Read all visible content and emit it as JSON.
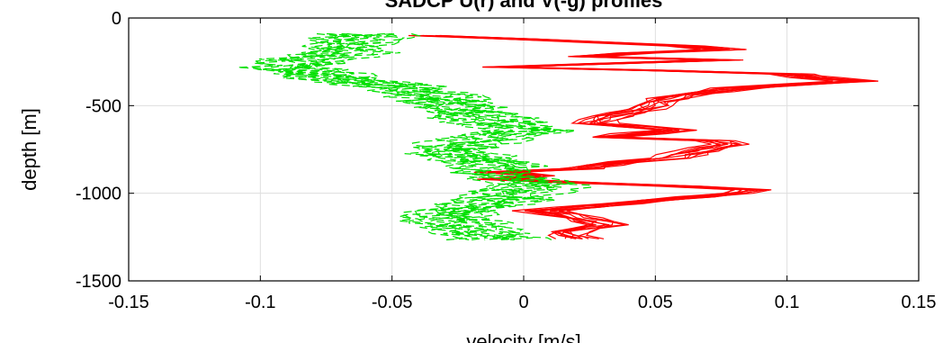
{
  "chart_data": {
    "type": "line",
    "title": "SADCP U(r) and V(-g) profiles",
    "xlabel": "velocity [m/s]",
    "ylabel": "depth [m]",
    "xlim": [
      -0.15,
      0.15
    ],
    "ylim": [
      -1500,
      0
    ],
    "xticks": [
      -0.15,
      -0.1,
      -0.05,
      0,
      0.05,
      0.1,
      0.15
    ],
    "xtick_labels": [
      "-0.15",
      "-0.1",
      "-0.05",
      "0",
      "0.05",
      "0.1",
      "0.15"
    ],
    "yticks": [
      0,
      -500,
      -1000,
      -1500
    ],
    "ytick_labels": [
      "0",
      "-500",
      "-1000",
      "-1500"
    ],
    "grid": true,
    "series": [
      {
        "color": "#ff0000",
        "dash": "solid",
        "ensemble": "center-with-spread",
        "depth_step": 20,
        "depth_range": [
          -100,
          -1260
        ],
        "profile_count": 10,
        "spread": 0.009,
        "noise": 0.004,
        "profile": [
          [
            -100,
            -0.04
          ],
          [
            -110,
            -0.02
          ],
          [
            -140,
            0.03
          ],
          [
            -160,
            0.06
          ],
          [
            -180,
            0.075
          ],
          [
            -200,
            0.04
          ],
          [
            -220,
            0.02
          ],
          [
            -240,
            0.075
          ],
          [
            -260,
            0.03
          ],
          [
            -280,
            -0.01
          ],
          [
            -300,
            0.05
          ],
          [
            -320,
            0.1
          ],
          [
            -340,
            0.11
          ],
          [
            -360,
            0.125
          ],
          [
            -380,
            0.1
          ],
          [
            -400,
            0.08
          ],
          [
            -440,
            0.06
          ],
          [
            -480,
            0.05
          ],
          [
            -520,
            0.045
          ],
          [
            -560,
            0.03
          ],
          [
            -600,
            0.025
          ],
          [
            -620,
            0.04
          ],
          [
            -640,
            0.055
          ],
          [
            -680,
            0.03
          ],
          [
            -700,
            0.07
          ],
          [
            -720,
            0.075
          ],
          [
            -760,
            0.065
          ],
          [
            -800,
            0.055
          ],
          [
            -830,
            0.03
          ],
          [
            -860,
            0.02
          ],
          [
            -880,
            -0.01
          ],
          [
            -900,
            0.005
          ],
          [
            -920,
            -0.01
          ],
          [
            -940,
            0.02
          ],
          [
            -960,
            0.06
          ],
          [
            -980,
            0.085
          ],
          [
            -1000,
            0.08
          ],
          [
            -1040,
            0.05
          ],
          [
            -1080,
            0.02
          ],
          [
            -1100,
            0.005
          ],
          [
            -1140,
            0.02
          ],
          [
            -1180,
            0.03
          ],
          [
            -1220,
            0.015
          ],
          [
            -1260,
            0.02
          ]
        ]
      },
      {
        "color": "#00e000",
        "dash": "dashed",
        "ensemble": "scatter",
        "depth_step": 12,
        "depth_range": [
          -90,
          -1270
        ],
        "profile_count": 10,
        "spread": 0.014,
        "noise": 0.01,
        "profile": [
          [
            -90,
            -0.06
          ],
          [
            -120,
            -0.065
          ],
          [
            -160,
            -0.07
          ],
          [
            -200,
            -0.07
          ],
          [
            -240,
            -0.085
          ],
          [
            -280,
            -0.09
          ],
          [
            -320,
            -0.08
          ],
          [
            -360,
            -0.065
          ],
          [
            -400,
            -0.045
          ],
          [
            -440,
            -0.035
          ],
          [
            -480,
            -0.03
          ],
          [
            -520,
            -0.025
          ],
          [
            -560,
            -0.02
          ],
          [
            -600,
            -0.01
          ],
          [
            -640,
            0
          ],
          [
            -680,
            -0.01
          ],
          [
            -720,
            -0.025
          ],
          [
            -760,
            -0.03
          ],
          [
            -800,
            -0.02
          ],
          [
            -840,
            -0.01
          ],
          [
            -880,
            -0.01
          ],
          [
            -920,
            -0.005
          ],
          [
            -960,
            0.005
          ],
          [
            -1000,
            -0.005
          ],
          [
            -1040,
            -0.01
          ],
          [
            -1080,
            -0.02
          ],
          [
            -1120,
            -0.03
          ],
          [
            -1160,
            -0.03
          ],
          [
            -1200,
            -0.02
          ],
          [
            -1240,
            -0.015
          ],
          [
            -1270,
            -0.01
          ]
        ]
      }
    ]
  }
}
